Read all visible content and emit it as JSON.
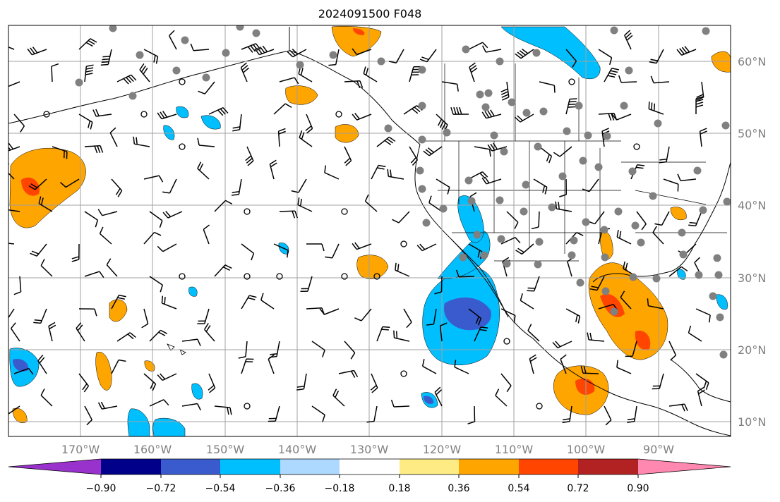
{
  "title": "2024091500 F048",
  "map": {
    "lat_labels": [
      "60°N",
      "50°N",
      "40°N",
      "30°N",
      "20°N",
      "10°N"
    ],
    "lon_labels": [
      "170°W",
      "160°W",
      "150°W",
      "140°W",
      "130°W",
      "120°W",
      "110°W",
      "100°W",
      "90°W"
    ],
    "grid_color": "#a0a0a0",
    "coastline_color": "#000000",
    "station_color": "#808080"
  },
  "colorbar": {
    "tick_labels": [
      "−0.90",
      "−0.72",
      "−0.54",
      "−0.36",
      "−0.18",
      "0.18",
      "0.36",
      "0.54",
      "0.72",
      "0.90"
    ],
    "bins": [
      {
        "color": "#9932cc"
      },
      {
        "color": "#00008b"
      },
      {
        "color": "#3a5bcd"
      },
      {
        "color": "#00bfff"
      },
      {
        "color": "#add8ff"
      },
      {
        "color": "#ffffff"
      },
      {
        "color": "#ffeb84"
      },
      {
        "color": "#ffa500"
      },
      {
        "color": "#ff4500"
      },
      {
        "color": "#b22222"
      },
      {
        "color": "#ff88b0"
      }
    ]
  }
}
